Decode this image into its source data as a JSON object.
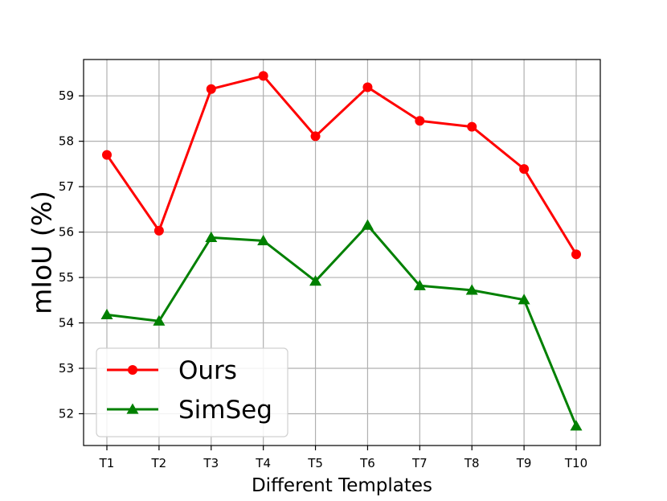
{
  "chart_data": {
    "type": "line",
    "xlabel": "Different Templates",
    "ylabel": "mIoU (%)",
    "categories": [
      "T1",
      "T2",
      "T3",
      "T4",
      "T5",
      "T6",
      "T7",
      "T8",
      "T9",
      "T10"
    ],
    "ylim": [
      51.3,
      59.8
    ],
    "yticks": [
      52,
      53,
      54,
      55,
      56,
      57,
      58,
      59
    ],
    "grid": true,
    "legend_position": "lower-left",
    "series": [
      {
        "name": "Ours",
        "color": "#ff0000",
        "marker": "circle",
        "values": [
          57.7,
          56.03,
          59.15,
          59.44,
          58.11,
          59.19,
          58.45,
          58.32,
          57.39,
          55.51
        ]
      },
      {
        "name": "SimSeg",
        "color": "#008000",
        "marker": "triangle",
        "values": [
          54.18,
          54.04,
          55.88,
          55.81,
          54.92,
          56.15,
          54.82,
          54.72,
          54.51,
          51.73
        ]
      }
    ]
  }
}
